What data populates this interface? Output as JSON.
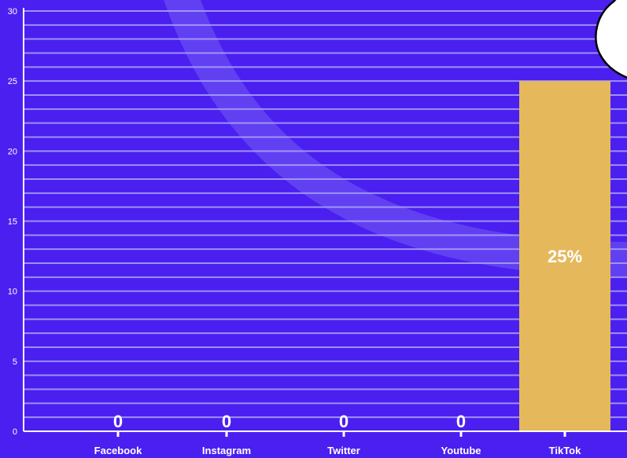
{
  "colors": {
    "background": "#4a1ff0",
    "gridline": "#a99cf5",
    "axis": "#ffffff",
    "bar": "#e5b85c",
    "text": "#ffffff",
    "arc": "#6a4cf3",
    "bubble_fill": "#ffffff",
    "bubble_stroke": "#000000"
  },
  "chart_data": {
    "type": "bar",
    "categories": [
      "Facebook",
      "Instagram",
      "Twitter",
      "Youtube",
      "TikTok"
    ],
    "values": [
      0,
      0,
      0,
      0,
      25
    ],
    "data_labels": [
      "0",
      "0",
      "0",
      "0",
      "25%"
    ],
    "ylim": [
      0,
      30
    ],
    "yticks": [
      "0",
      "5",
      "10",
      "15",
      "20",
      "25",
      "30"
    ],
    "grid": true,
    "minor_grid_step": 1
  }
}
